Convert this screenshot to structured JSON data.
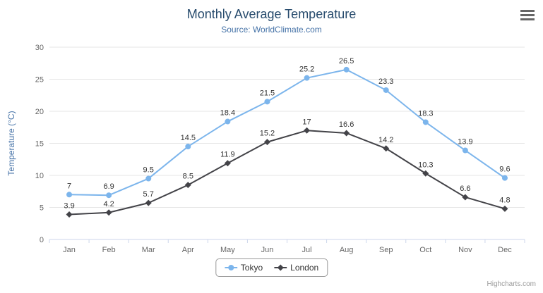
{
  "title": "Monthly Average Temperature",
  "subtitle": "Source: WorldClimate.com",
  "credits": "Highcharts.com",
  "menu_icon": "hamburger-menu-icon",
  "chart_data": {
    "type": "line",
    "title": "Monthly Average Temperature",
    "subtitle": "Source: WorldClimate.com",
    "xlabel": "",
    "ylabel": "Temperature (°C)",
    "ylim": [
      0,
      30
    ],
    "ytick_interval": 5,
    "grid": true,
    "legend_position": "bottom",
    "data_labels": true,
    "categories": [
      "Jan",
      "Feb",
      "Mar",
      "Apr",
      "May",
      "Jun",
      "Jul",
      "Aug",
      "Sep",
      "Oct",
      "Nov",
      "Dec"
    ],
    "series": [
      {
        "name": "Tokyo",
        "color": "#7cb5ec",
        "marker": "circle",
        "values": [
          7,
          6.9,
          9.5,
          14.5,
          18.4,
          21.5,
          25.2,
          26.5,
          23.3,
          18.3,
          13.9,
          9.6
        ]
      },
      {
        "name": "London",
        "color": "#434348",
        "marker": "diamond",
        "values": [
          3.9,
          4.2,
          5.7,
          8.5,
          11.9,
          15.2,
          17,
          16.6,
          14.2,
          10.3,
          6.6,
          4.8
        ]
      }
    ],
    "colors": {
      "grid": "#e6e6e6",
      "axis_line": "#ccd6eb",
      "axis_label": "#666666",
      "axis_title": "#4572a7",
      "data_label": "#333333",
      "title": "#274b6d",
      "subtitle": "#4572a7"
    }
  }
}
